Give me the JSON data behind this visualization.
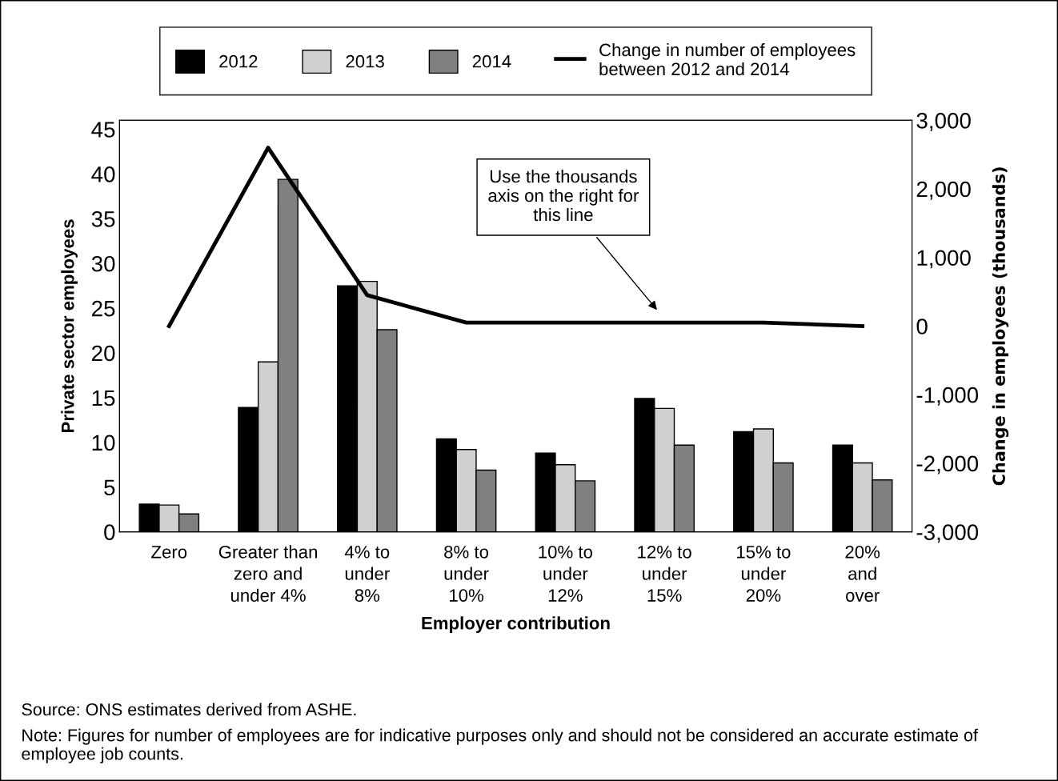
{
  "chart_data": {
    "type": "bar",
    "xlabel": "Employer contribution",
    "ylabel": "Private sector employees",
    "y2label": "Change in employees (thousands)",
    "categories": [
      "Zero",
      "Greater than\nzero and\nunder 4%",
      "4% to\nunder\n8%",
      "8% to\nunder\n10%",
      "10% to\nunder\n12%",
      "12% to\nunder\n15%",
      "15% to\nunder\n20%",
      "20%\nand\nover"
    ],
    "series": [
      {
        "name": "2012",
        "color": "#000000",
        "values": [
          3.1,
          13.9,
          27.5,
          10.4,
          8.8,
          14.9,
          11.2,
          9.7
        ]
      },
      {
        "name": "2013",
        "color": "#d0d0d0",
        "values": [
          3.0,
          19.0,
          28.0,
          9.2,
          7.5,
          13.8,
          11.5,
          7.7
        ]
      },
      {
        "name": "2014",
        "color": "#808080",
        "values": [
          2.0,
          39.4,
          22.6,
          6.9,
          5.7,
          9.7,
          7.7,
          5.8
        ]
      },
      {
        "name": "Change in number of employees\nbetween 2012 and 2014",
        "type": "line",
        "axis": "y2",
        "color": "#000000",
        "values": [
          0,
          2600,
          450,
          50,
          50,
          50,
          50,
          0
        ]
      }
    ],
    "ylim": [
      0,
      46
    ],
    "yticks": [
      0,
      5,
      10,
      15,
      20,
      25,
      30,
      35,
      40,
      45
    ],
    "y2lim": [
      -3000,
      3000
    ],
    "y2ticks": [
      {
        "value": -3000,
        "label": "-3,000"
      },
      {
        "value": -2000,
        "label": "-2,000"
      },
      {
        "value": -1000,
        "label": "-1,000"
      },
      0,
      {
        "value": 1000,
        "label": "1,000"
      },
      {
        "value": 2000,
        "label": "2,000"
      },
      {
        "value": 3000,
        "label": "3,000"
      }
    ],
    "grid": false,
    "legend": "top",
    "marker": "none",
    "annotations": [
      "Use the thousands\naxis on the right for\nthis line",
      "Source: ONS estimates derived from ASHE.",
      "Note: Figures for number of employees are for indicative purposes only and should not be considered an accurate estimate of employee job counts."
    ]
  }
}
